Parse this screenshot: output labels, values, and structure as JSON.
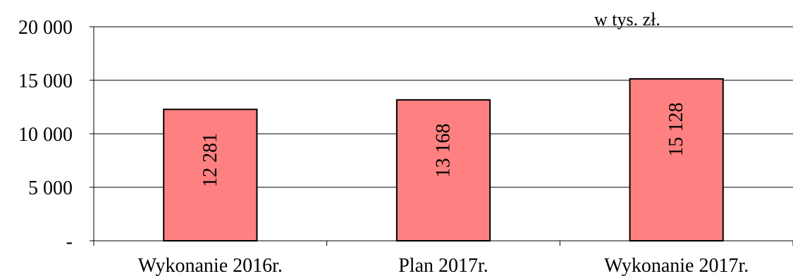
{
  "chart_data": {
    "type": "bar",
    "title": "",
    "unit_note": "w tys. zł.",
    "categories": [
      "Wykonanie 2016r.",
      "Plan 2017r.",
      "Wykonanie 2017r."
    ],
    "values": [
      12281,
      13168,
      15128
    ],
    "value_labels": [
      "12 281",
      "13 168",
      "15 128"
    ],
    "ylim": [
      0,
      20000
    ],
    "yticks": [
      0,
      5000,
      10000,
      15000,
      20000
    ],
    "ytick_labels": [
      "-",
      "5 000",
      "10 000",
      "15 000",
      "20 000"
    ],
    "grid": true,
    "bar_color": "#ff8080",
    "bar_edge_color": "#000000"
  }
}
